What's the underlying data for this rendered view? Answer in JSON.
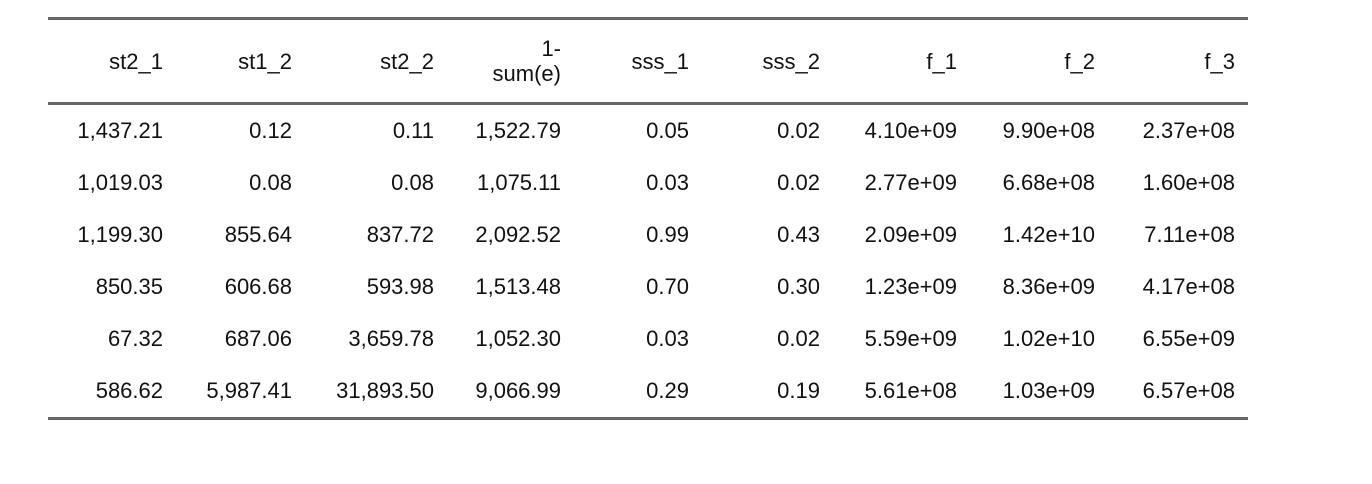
{
  "table": {
    "columns": [
      "st2_1",
      "st1_2",
      "st2_2",
      "1-sum(e)",
      "sss_1",
      "sss_2",
      "f_1",
      "f_2",
      "f_3"
    ],
    "rows": [
      [
        "1,437.21",
        "0.12",
        "0.11",
        "1,522.79",
        "0.05",
        "0.02",
        "4.10e+09",
        "9.90e+08",
        "2.37e+08"
      ],
      [
        "1,019.03",
        "0.08",
        "0.08",
        "1,075.11",
        "0.03",
        "0.02",
        "2.77e+09",
        "6.68e+08",
        "1.60e+08"
      ],
      [
        "1,199.30",
        "855.64",
        "837.72",
        "2,092.52",
        "0.99",
        "0.43",
        "2.09e+09",
        "1.42e+10",
        "7.11e+08"
      ],
      [
        "850.35",
        "606.68",
        "593.98",
        "1,513.48",
        "0.70",
        "0.30",
        "1.23e+09",
        "8.36e+09",
        "4.17e+08"
      ],
      [
        "67.32",
        "687.06",
        "3,659.78",
        "1,052.30",
        "0.03",
        "0.02",
        "5.59e+09",
        "1.02e+10",
        "6.55e+09"
      ],
      [
        "586.62",
        "5,987.41",
        "31,893.50",
        "9,066.99",
        "0.29",
        "0.19",
        "5.61e+08",
        "1.03e+09",
        "6.57e+08"
      ]
    ]
  }
}
